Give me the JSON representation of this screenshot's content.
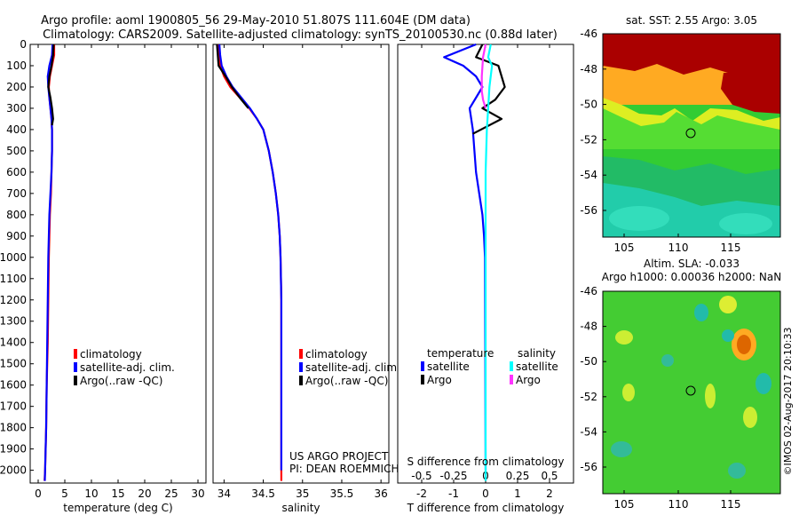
{
  "title_line1": "Argo profile: aoml 1900805_56 29-May-2010 51.807S 111.604E (DM data)",
  "title_line2": "Climatology: CARS2009. Satellite-adjusted climatology: synTS_20100530.nc (0.88d later)",
  "colors": {
    "climatology": "#ff0000",
    "satellite": "#0000ff",
    "argo": "#000000",
    "sal_satellite": "#00ffff",
    "sal_argo": "#ff33ff"
  },
  "chart_data": [
    {
      "id": "temperature",
      "type": "line",
      "xlabel": "temperature (deg C)",
      "ylabel": "",
      "xlim": [
        -1.5,
        31.5
      ],
      "ylim": [
        2060,
        0
      ],
      "xticks": [
        0,
        5,
        10,
        15,
        20,
        25,
        30
      ],
      "xtick_labels": [
        "0",
        "5",
        "10",
        "15",
        "20",
        "25",
        "30"
      ],
      "yticks": [
        0,
        100,
        200,
        300,
        400,
        500,
        600,
        700,
        800,
        900,
        1000,
        1100,
        1200,
        1300,
        1400,
        1500,
        1600,
        1700,
        1800,
        1900,
        2000
      ],
      "legend": [
        "climatology",
        "satellite-adj. clim.",
        "Argo(..raw -QC)"
      ],
      "legend_position": "lower-center",
      "series": [
        {
          "name": "climatology",
          "color_key": "climatology",
          "x": [
            3.0,
            3.0,
            2.6,
            2.2,
            2.0,
            2.1,
            2.3,
            2.5,
            2.6,
            2.6,
            2.5,
            2.4,
            2.2,
            2.1,
            2.0,
            1.9,
            1.8,
            1.6,
            1.5,
            1.4,
            1.3,
            1.2
          ],
          "y": [
            0,
            50,
            100,
            150,
            200,
            250,
            300,
            350,
            400,
            500,
            600,
            700,
            800,
            900,
            1000,
            1200,
            1400,
            1600,
            1800,
            1900,
            2000,
            2050
          ]
        },
        {
          "name": "satellite-adj. clim.",
          "color_key": "satellite",
          "x": [
            2.7,
            2.6,
            2.1,
            1.8,
            1.9,
            2.1,
            2.3,
            2.5,
            2.6,
            2.6,
            2.5,
            2.3,
            2.1,
            2.0,
            1.9,
            1.8,
            1.7,
            1.6,
            1.5,
            1.4,
            1.3,
            1.25
          ],
          "y": [
            0,
            50,
            100,
            150,
            200,
            250,
            300,
            350,
            400,
            500,
            600,
            700,
            800,
            900,
            1000,
            1200,
            1400,
            1600,
            1800,
            1900,
            2000,
            2050
          ]
        },
        {
          "name": "Argo(..raw -QC)",
          "color_key": "argo",
          "x": [
            2.9,
            2.8,
            2.5,
            2.1,
            1.9,
            2.3,
            2.6,
            2.8,
            2.6
          ],
          "y": [
            0,
            50,
            100,
            150,
            200,
            250,
            300,
            350,
            380
          ]
        }
      ]
    },
    {
      "id": "salinity",
      "type": "line",
      "xlabel": "salinity",
      "ylabel": "",
      "xlim": [
        33.86,
        36.1
      ],
      "ylim": [
        2060,
        0
      ],
      "xticks": [
        34,
        34.5,
        35,
        35.5,
        36
      ],
      "xtick_labels": [
        "34",
        "34.5",
        "35",
        "35.5",
        "36"
      ],
      "legend": [
        "climatology",
        "satellite-adj. clim.",
        "Argo(..raw -QC)"
      ],
      "legend_position": "lower-center",
      "annotation": [
        "US ARGO PROJECT",
        "PI: DEAN ROEMMICH"
      ],
      "series": [
        {
          "name": "climatology",
          "color_key": "climatology",
          "x": [
            33.92,
            33.93,
            33.95,
            34.0,
            34.08,
            34.2,
            34.32,
            34.42,
            34.5,
            34.57,
            34.62,
            34.66,
            34.69,
            34.71,
            34.72,
            34.73,
            34.73,
            34.73,
            34.73,
            34.73
          ],
          "y": [
            0,
            50,
            100,
            150,
            200,
            250,
            300,
            350,
            400,
            500,
            600,
            700,
            800,
            900,
            1000,
            1200,
            1400,
            1600,
            1800,
            2050
          ]
        },
        {
          "name": "satellite-adj. clim.",
          "color_key": "satellite",
          "x": [
            33.94,
            33.95,
            33.97,
            34.03,
            34.11,
            34.22,
            34.33,
            34.42,
            34.5,
            34.57,
            34.62,
            34.66,
            34.69,
            34.71,
            34.72,
            34.73,
            34.73,
            34.73,
            34.73,
            34.73
          ],
          "y": [
            0,
            50,
            100,
            150,
            200,
            250,
            300,
            350,
            400,
            500,
            600,
            700,
            800,
            900,
            1000,
            1200,
            1400,
            1600,
            1800,
            2000
          ]
        },
        {
          "name": "Argo(..raw -QC)",
          "color_key": "argo",
          "x": [
            33.91,
            33.92,
            33.93,
            34.02,
            34.1,
            34.2,
            34.31
          ],
          "y": [
            0,
            50,
            100,
            150,
            200,
            250,
            300
          ]
        }
      ]
    },
    {
      "id": "difference",
      "type": "line",
      "xlabel": "T difference from climatology",
      "x2label": "S difference from climatology",
      "xlim": [
        -2.75,
        2.75
      ],
      "ylim": [
        2060,
        0
      ],
      "xticks": [
        -2,
        -1,
        0,
        1,
        2
      ],
      "xtick_labels": [
        "-2",
        "-1",
        "0",
        "1",
        "2"
      ],
      "x2ticks": [
        -0.5,
        -0.25,
        0,
        0.25,
        0.5
      ],
      "x2tick_labels": [
        "-0.5",
        "-0.25",
        "0",
        "0.25",
        "0.5"
      ],
      "x2lim": [
        -0.6875,
        0.6875
      ],
      "legend_headers": [
        "temperature",
        "salinity"
      ],
      "legend": [
        {
          "name": "satellite",
          "color_key": "satellite",
          "group": "temperature"
        },
        {
          "name": "Argo",
          "color_key": "argo",
          "group": "temperature"
        },
        {
          "name": "satellite",
          "color_key": "sal_satellite",
          "group": "salinity"
        },
        {
          "name": "Argo",
          "color_key": "sal_argo",
          "group": "salinity"
        }
      ],
      "legend_position": "lower-center",
      "series": [
        {
          "name": "temperature satellite",
          "color_key": "satellite",
          "axis": "T",
          "x": [
            -0.3,
            -1.3,
            -0.7,
            -0.3,
            -0.1,
            -0.3,
            -0.5,
            -0.4,
            -0.35,
            -0.3,
            -0.2,
            -0.1,
            -0.05,
            -0.02,
            0
          ],
          "y": [
            0,
            60,
            100,
            150,
            200,
            250,
            300,
            400,
            500,
            600,
            700,
            800,
            900,
            1000,
            2000
          ]
        },
        {
          "name": "temperature Argo",
          "color_key": "argo",
          "axis": "T",
          "x": [
            -0.1,
            -0.3,
            0.4,
            0.6,
            0.3,
            -0.1,
            0.5,
            -0.4
          ],
          "y": [
            0,
            60,
            100,
            200,
            260,
            300,
            350,
            420
          ]
        },
        {
          "name": "salinity satellite",
          "color_key": "sal_satellite",
          "axis": "S",
          "x": [
            0.04,
            0.02,
            0.05,
            0.03,
            0.02,
            0.01,
            0.0,
            0.0,
            0.0
          ],
          "y": [
            0,
            60,
            100,
            200,
            300,
            400,
            600,
            1000,
            2050
          ]
        },
        {
          "name": "salinity Argo",
          "color_key": "sal_argo",
          "axis": "S",
          "x": [
            0.0,
            -0.02,
            -0.03,
            -0.03,
            -0.02,
            0.0
          ],
          "y": [
            0,
            60,
            150,
            220,
            260,
            300
          ]
        }
      ]
    }
  ],
  "maps": [
    {
      "id": "sst-map",
      "label": "sat. SST: 2.55 Argo: 3.05",
      "lon_ticks": [
        "105",
        "110",
        "115"
      ],
      "lat_ticks": [
        "-46",
        "-48",
        "-50",
        "-52",
        "-54",
        "-56"
      ],
      "marker": {
        "lon": 111.6,
        "lat": -51.8
      }
    },
    {
      "id": "sla-map",
      "label_line1": "Altim. SLA: -0.033",
      "label_line2": "Argo h1000: 0.00036 h2000: NaN",
      "lon_ticks": [
        "105",
        "110",
        "115"
      ],
      "lat_ticks": [
        "-46",
        "-48",
        "-50",
        "-52",
        "-54",
        "-56"
      ],
      "marker": {
        "lon": 111.6,
        "lat": -51.8
      }
    }
  ],
  "footer_stamp": "©IMOS 02-Aug-2017 20:10:33"
}
